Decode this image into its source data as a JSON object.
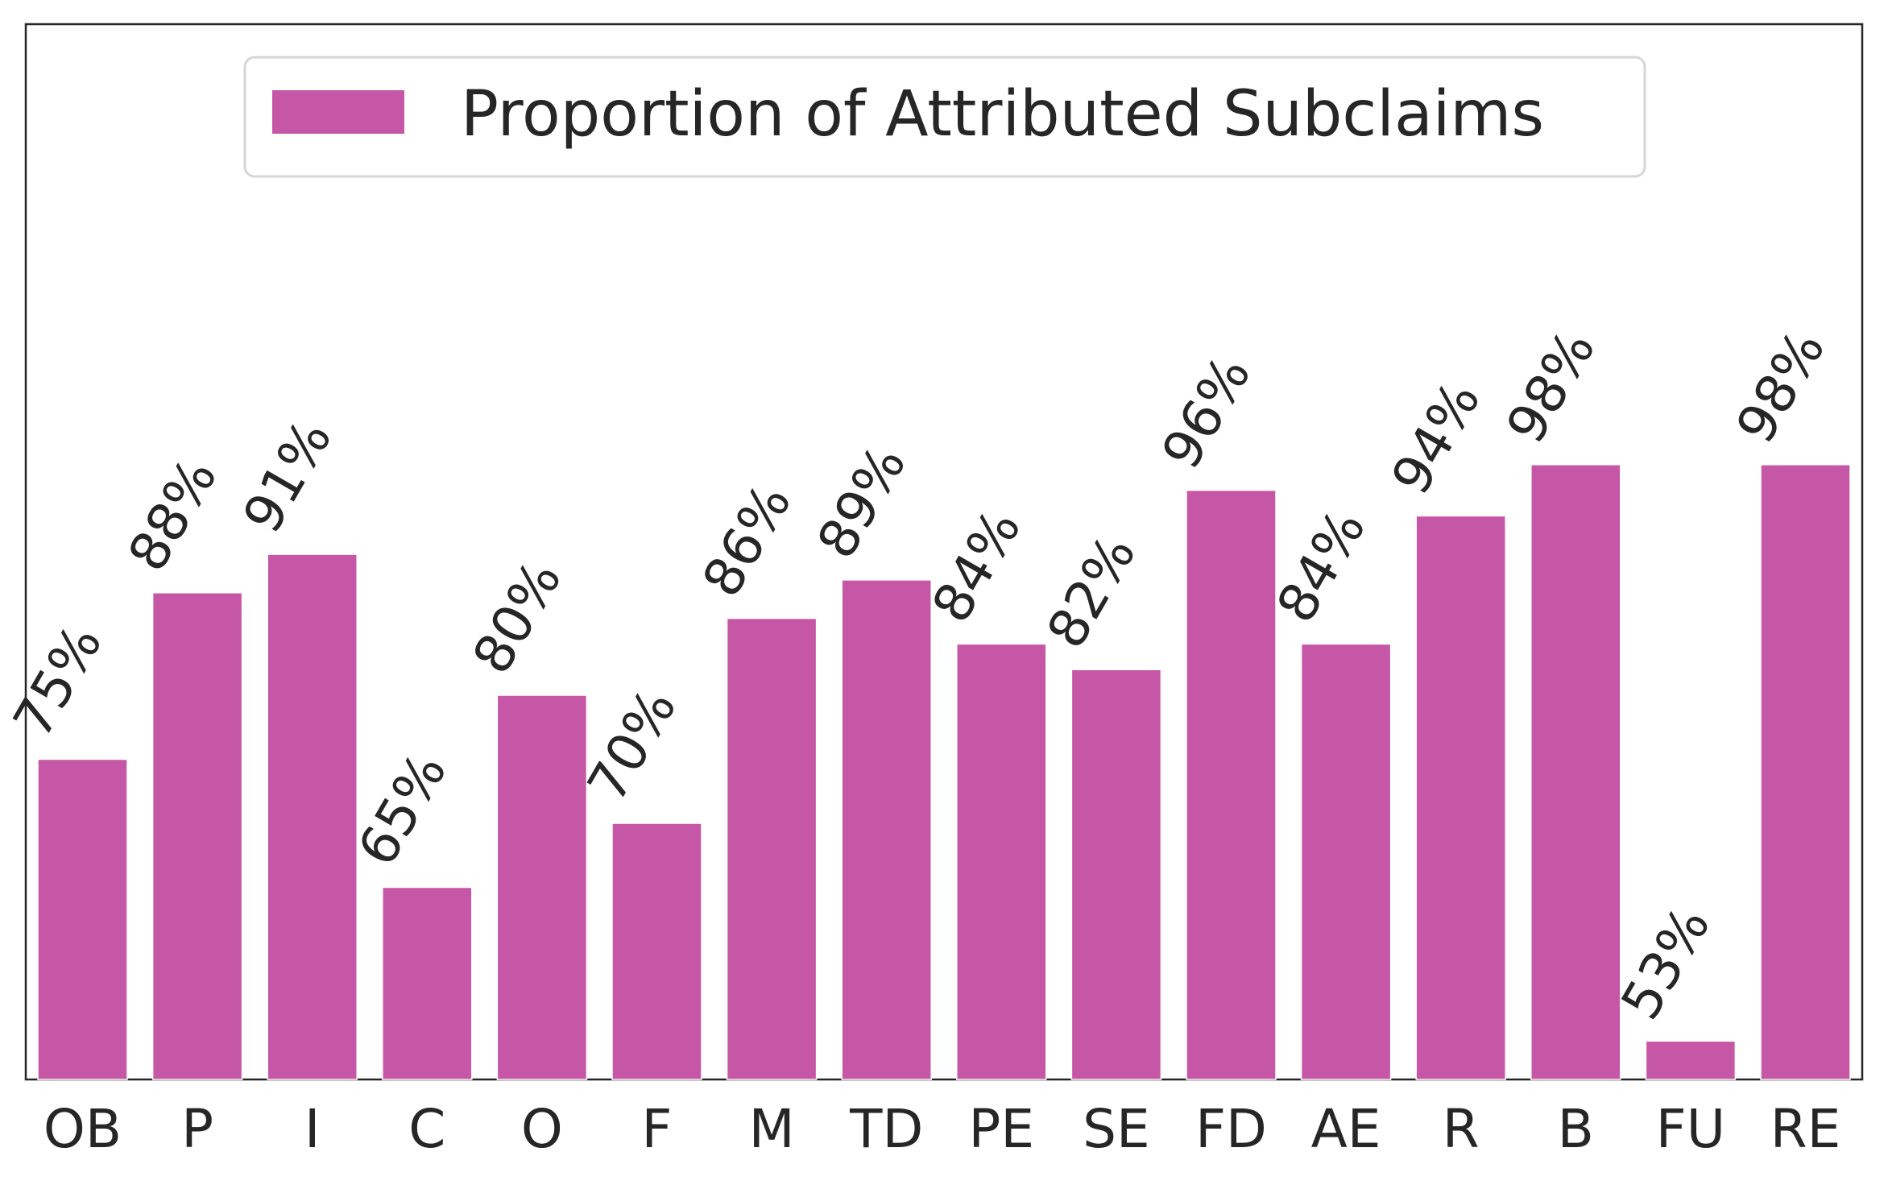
{
  "chart_data": {
    "type": "bar",
    "title": "",
    "xlabel": "",
    "ylabel": "",
    "categories": [
      "OB",
      "P",
      "I",
      "C",
      "O",
      "F",
      "M",
      "TD",
      "PE",
      "SE",
      "FD",
      "AE",
      "R",
      "B",
      "FU",
      "RE"
    ],
    "series": [
      {
        "name": "Proportion of Attributed Subclaims",
        "values": [
          75,
          88,
          91,
          65,
          80,
          70,
          86,
          89,
          84,
          82,
          96,
          84,
          94,
          98,
          53,
          98
        ],
        "labels": [
          "75%",
          "88%",
          "91%",
          "65%",
          "80%",
          "70%",
          "86%",
          "89%",
          "84%",
          "82%",
          "96%",
          "84%",
          "94%",
          "98%",
          "53%",
          "98%"
        ]
      }
    ],
    "ylim": [
      50,
      125
    ],
    "grid": false,
    "yticks_visible": false,
    "legend_position": "top-center",
    "bar_color": "#c657a6"
  }
}
